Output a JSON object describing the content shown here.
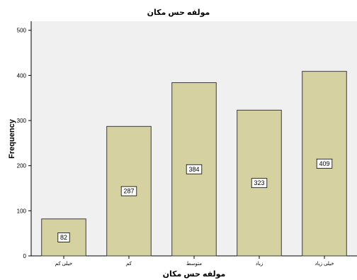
{
  "chart_data": {
    "type": "bar",
    "title": "مولفه حس مکان",
    "xlabel": "مولفه حس مکان",
    "ylabel": "Frequency",
    "categories": [
      "خیلی کم",
      "کم",
      "متوسط",
      "زیاد",
      "خیلی زیاد"
    ],
    "values": [
      82,
      287,
      384,
      323,
      409
    ],
    "data_labels": [
      "82",
      "287",
      "384",
      "323",
      "409"
    ],
    "yticks": [
      0,
      100,
      200,
      300,
      400,
      500
    ],
    "ytick_labels": [
      "0",
      "100",
      "200",
      "300",
      "400",
      "500"
    ],
    "ylim": [
      0,
      520
    ],
    "grid": false,
    "colors": {
      "bar_fill": "#d6d1a0",
      "bar_stroke": "#3c3c3c",
      "plot_background": "#f0f0f0",
      "label_box": "#ffffff"
    }
  }
}
